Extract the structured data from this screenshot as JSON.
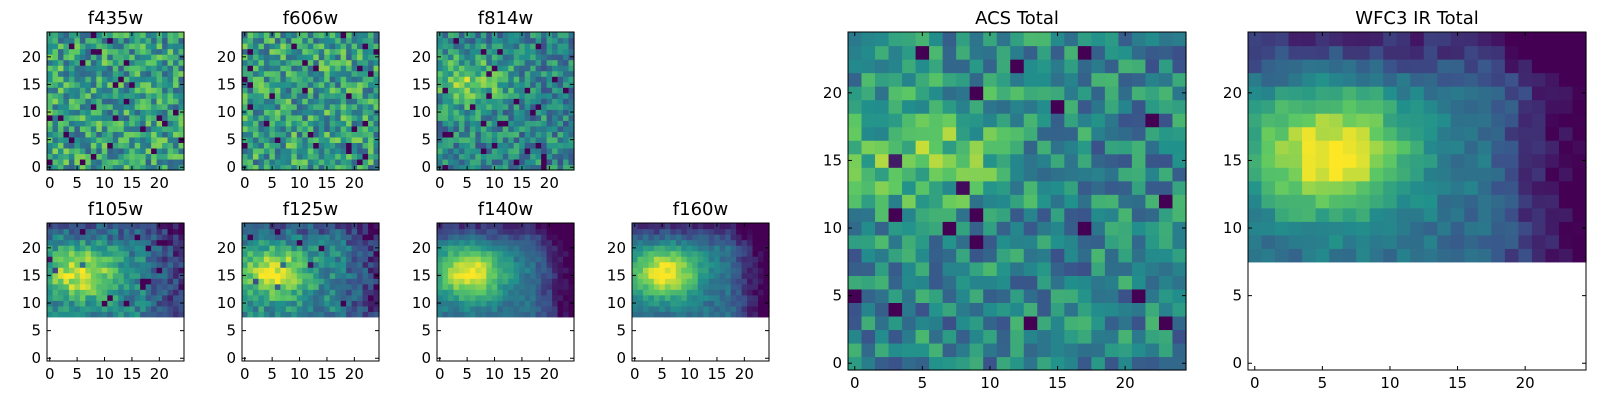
{
  "chart_data": [
    {
      "type": "heatmap",
      "title": "f435w",
      "grid_size": 25,
      "masked_below_y": 0,
      "xticks": [
        0,
        5,
        10,
        15,
        20
      ],
      "yticks": [
        0,
        5,
        10,
        15,
        20
      ],
      "xlim": [
        0,
        25
      ],
      "ylim": [
        0,
        25
      ],
      "pattern": "noise"
    },
    {
      "type": "heatmap",
      "title": "f606w",
      "grid_size": 25,
      "masked_below_y": 0,
      "xticks": [
        0,
        5,
        10,
        15,
        20
      ],
      "yticks": [
        0,
        5,
        10,
        15,
        20
      ],
      "xlim": [
        0,
        25
      ],
      "ylim": [
        0,
        25
      ],
      "pattern": "noise"
    },
    {
      "type": "heatmap",
      "title": "f814w",
      "grid_size": 25,
      "masked_below_y": 0,
      "xticks": [
        0,
        5,
        10,
        15,
        20
      ],
      "yticks": [
        0,
        5,
        10,
        15,
        20
      ],
      "xlim": [
        0,
        25
      ],
      "ylim": [
        0,
        25
      ],
      "pattern": "noise_blob"
    },
    {
      "type": "heatmap",
      "title": "f105w",
      "grid_size": 25,
      "masked_below_y": 8,
      "xticks": [
        0,
        5,
        10,
        15,
        20
      ],
      "yticks": [
        0,
        5,
        10,
        15,
        20
      ],
      "xlim": [
        0,
        25
      ],
      "ylim": [
        0,
        25
      ],
      "pattern": "blob"
    },
    {
      "type": "heatmap",
      "title": "f125w",
      "grid_size": 25,
      "masked_below_y": 8,
      "xticks": [
        0,
        5,
        10,
        15,
        20
      ],
      "yticks": [
        0,
        5,
        10,
        15,
        20
      ],
      "xlim": [
        0,
        25
      ],
      "ylim": [
        0,
        25
      ],
      "pattern": "blob"
    },
    {
      "type": "heatmap",
      "title": "f140w",
      "grid_size": 25,
      "masked_below_y": 8,
      "xticks": [
        0,
        5,
        10,
        15,
        20
      ],
      "yticks": [
        0,
        5,
        10,
        15,
        20
      ],
      "xlim": [
        0,
        25
      ],
      "ylim": [
        0,
        25
      ],
      "pattern": "blob_smooth"
    },
    {
      "type": "heatmap",
      "title": "f160w",
      "grid_size": 25,
      "masked_below_y": 8,
      "xticks": [
        0,
        5,
        10,
        15,
        20
      ],
      "yticks": [
        0,
        5,
        10,
        15,
        20
      ],
      "xlim": [
        0,
        25
      ],
      "ylim": [
        0,
        25
      ],
      "pattern": "blob_smooth"
    },
    {
      "type": "heatmap",
      "title": "ACS Total",
      "grid_size": 25,
      "masked_below_y": 0,
      "xticks": [
        0,
        5,
        10,
        15,
        20
      ],
      "yticks": [
        0,
        5,
        10,
        15,
        20
      ],
      "xlim": [
        0,
        25
      ],
      "ylim": [
        0,
        25
      ],
      "pattern": "noise_blob"
    },
    {
      "type": "heatmap",
      "title": "WFC3 IR Total",
      "grid_size": 25,
      "masked_below_y": 8,
      "xticks": [
        0,
        5,
        10,
        15,
        20
      ],
      "yticks": [
        0,
        5,
        10,
        15,
        20
      ],
      "xlim": [
        0,
        25
      ],
      "ylim": [
        0,
        25
      ],
      "pattern": "blob_smooth"
    }
  ],
  "colormap": [
    "#440154",
    "#3b528b",
    "#21918c",
    "#5ec962",
    "#fde725"
  ]
}
